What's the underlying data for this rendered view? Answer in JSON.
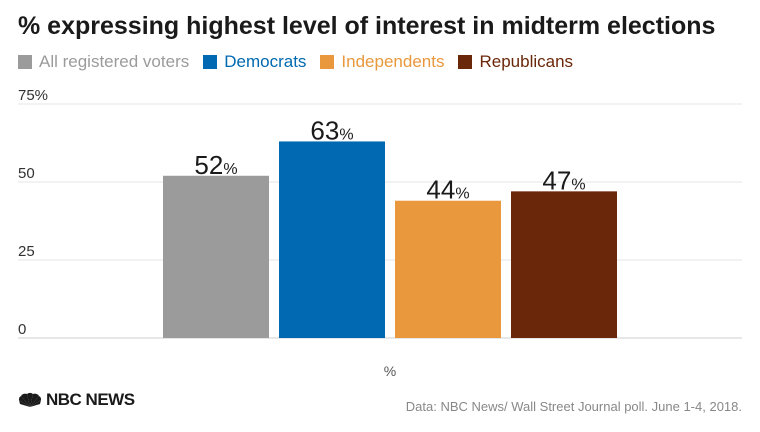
{
  "title": "% expressing highest level of interest in midterm elections",
  "legend": [
    {
      "label": "All registered voters",
      "color": "#9b9b9b"
    },
    {
      "label": "Democrats",
      "color": "#0069b1"
    },
    {
      "label": "Independents",
      "color": "#e9983d"
    },
    {
      "label": "Republicans",
      "color": "#6a2709"
    }
  ],
  "source": "Data: NBC News/ Wall Street Journal poll. June 1-4, 2018.",
  "logo": {
    "text": "NBC NEWS",
    "icon": "nbc-peacock-icon"
  },
  "chart_data": {
    "type": "bar",
    "categories": [
      "%"
    ],
    "xlabel": "%",
    "ylabel": "",
    "ylim": [
      0,
      75
    ],
    "yticks": [
      0,
      25,
      50,
      75
    ],
    "ytick_labels": [
      "0",
      "25",
      "50",
      "75%"
    ],
    "grid": true,
    "legend_position": "top-left",
    "value_suffix": "%",
    "series": [
      {
        "name": "All registered voters",
        "values": [
          52
        ],
        "color": "#9b9b9b"
      },
      {
        "name": "Democrats",
        "values": [
          63
        ],
        "color": "#0069b1"
      },
      {
        "name": "Independents",
        "values": [
          44
        ],
        "color": "#e9983d"
      },
      {
        "name": "Republicans",
        "values": [
          47
        ],
        "color": "#6a2709"
      }
    ]
  }
}
